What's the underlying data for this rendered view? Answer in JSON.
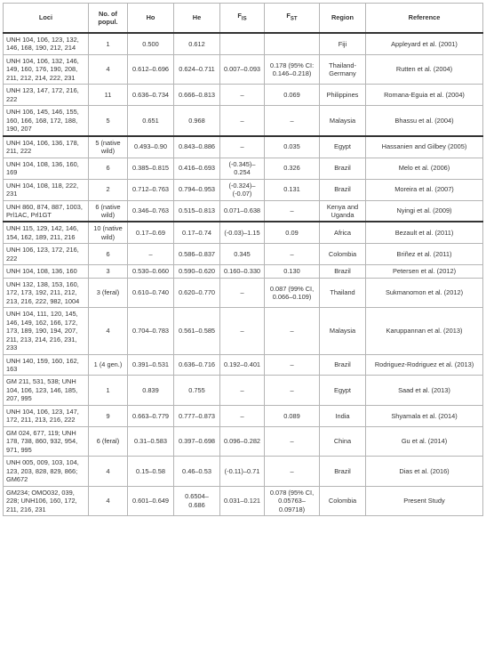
{
  "table": {
    "headers": {
      "loci": "Loci",
      "popul": "No. of popul.",
      "ho": "Ho",
      "he": "He",
      "fis_main": "F",
      "fis_sub": "IS",
      "fst_main": "F",
      "fst_sub": "ST",
      "region": "Region",
      "reference": "Reference"
    },
    "rows": [
      {
        "loci": "UNH 104, 106, 123, 132, 146, 168, 190, 212, 214",
        "popul": "1",
        "ho": "0.500",
        "he": "0.612",
        "fis": "",
        "fst": "",
        "region": "Fiji",
        "reference": "Appleyard et al. (2001)"
      },
      {
        "loci": "UNH 104, 106, 132, 146, 149, 160, 176, 190, 208, 211, 212, 214, 222, 231",
        "popul": "4",
        "ho": "0.612–0.696",
        "he": "0.624–0.711",
        "fis": "0.007–0.093",
        "fst": "0.178 (95% CI: 0.146–0.218)",
        "region": "Thailand-Germany",
        "reference": "Rutten et al. (2004)"
      },
      {
        "loci": "UNH 123, 147, 172, 216, 222",
        "popul": "11",
        "ho": "0.636–0.734",
        "he": "0.666–0.813",
        "fis": "–",
        "fst": "0.069",
        "region": "Philippines",
        "reference": "Romana-Eguia et al. (2004)"
      },
      {
        "loci": "UNH 106, 145, 146, 155, 160, 166, 168, 172, 188, 190, 207",
        "popul": "5",
        "ho": "0.651",
        "he": "0.968",
        "fis": "–",
        "fst": "–",
        "region": "Malaysia",
        "reference": "Bhassu et al. (2004)"
      },
      {
        "loci": "UNH 104, 106, 136, 178, 211, 222",
        "popul": "5 (native wild)",
        "ho": "0.493–0.90",
        "he": "0.843–0.886",
        "fis": "–",
        "fst": "0.035",
        "region": "Egypt",
        "reference": "Hassanien and Gilbey (2005)",
        "group_start": true
      },
      {
        "loci": "UNH 104, 108, 136, 160, 169",
        "popul": "6",
        "ho": "0.385–0.815",
        "he": "0.416–0.693",
        "fis": "(-0.345)–0.254",
        "fst": "0.326",
        "region": "Brazil",
        "reference": "Melo et al. (2006)"
      },
      {
        "loci": "UNH 104, 108, 118, 222, 231",
        "popul": "2",
        "ho": "0.712–0.763",
        "he": "0.794–0.953",
        "fis": "(-0.324)–(-0.07)",
        "fst": "0.131",
        "region": "Brazil",
        "reference": "Moreira et al. (2007)"
      },
      {
        "loci": "UNH 860, 874, 887, 1003, Prl1AC, Prl1GT",
        "popul": "6 (native wild)",
        "ho": "0.346–0.763",
        "he": "0.515–0.813",
        "fis": "0.071–0.638",
        "fst": "–",
        "region": "Kenya and Uganda",
        "reference": "Nyingi et al. (2009)"
      },
      {
        "loci": "UNH 115, 129, 142, 146, 154, 162, 189, 211, 216",
        "popul": "10 (native wild)",
        "ho": "0.17–0.69",
        "he": "0.17–0.74",
        "fis": "(-0.03)–1.15",
        "fst": "0.09",
        "region": "Africa",
        "reference": "Bezault et al. (2011)",
        "group_start": true
      },
      {
        "loci": "UNH 106, 123, 172, 216, 222",
        "popul": "6",
        "ho": "–",
        "he": "0.586–0.837",
        "fis": "0.345",
        "fst": "–",
        "region": "Colombia",
        "reference": "Briñez et al. (2011)"
      },
      {
        "loci": "UNH 104, 108, 136, 160",
        "popul": "3",
        "ho": "0.530–0.660",
        "he": "0.590–0.620",
        "fis": "0.160–0.330",
        "fst": "0.130",
        "region": "Brazil",
        "reference": "Petersen et al. (2012)"
      },
      {
        "loci": "UNH 132, 138, 153, 160, 172, 173, 192, 211, 212, 213, 216, 222, 982, 1004",
        "popul": "3 (feral)",
        "ho": "0.610–0.740",
        "he": "0.620–0.770",
        "fis": "–",
        "fst": "0.087 (99% CI, 0.066–0.109)",
        "region": "Thailand",
        "reference": "Sukmanomon et al. (2012)"
      },
      {
        "loci": "UNH 104, 111, 120, 145, 146, 149, 162, 166, 172, 173, 189, 190, 194, 207, 211, 213, 214, 216, 231, 233",
        "popul": "4",
        "ho": "0.704–0.783",
        "he": "0.561–0.585",
        "fis": "–",
        "fst": "–",
        "region": "Malaysia",
        "reference": "Karuppannan et al. (2013)"
      },
      {
        "loci": "UNH 140, 159, 160, 162, 163",
        "popul": "1 (4 gen.)",
        "ho": "0.391–0.531",
        "he": "0.636–0.716",
        "fis": "0.192–0.401",
        "fst": "–",
        "region": "Brazil",
        "reference": "Rodriguez-Rodriguez et al. (2013)"
      },
      {
        "loci": "GM 211, 531, 538; UNH 104, 106, 123, 146, 185, 207, 995",
        "popul": "1",
        "ho": "0.839",
        "he": "0.755",
        "fis": "–",
        "fst": "–",
        "region": "Egypt",
        "reference": "Saad et al. (2013)"
      },
      {
        "loci": "UNH 104, 106, 123, 147, 172, 211, 213, 216, 222",
        "popul": "9",
        "ho": "0.663–0.779",
        "he": "0.777–0.873",
        "fis": "–",
        "fst": "0.089",
        "region": "India",
        "reference": "Shyamala et al. (2014)"
      },
      {
        "loci": "GM 024, 677, 119; UNH 178, 738, 860, 932, 954, 971, 995",
        "popul": "6 (feral)",
        "ho": "0.31–0.583",
        "he": "0.397–0.698",
        "fis": "0.096–0.282",
        "fst": "–",
        "region": "China",
        "reference": "Gu et al. (2014)"
      },
      {
        "loci": "UNH 005, 009, 103, 104, 123, 203, 828, 829, 866; GM672",
        "popul": "4",
        "ho": "0.15–0.58",
        "he": "0.46–0.53",
        "fis": "(-0.11)–0.71",
        "fst": "–",
        "region": "Brazil",
        "reference": "Dias et al. (2016)"
      },
      {
        "loci": "GM234; OMO032, 039, 228; UNH106, 160, 172, 211, 216, 231",
        "popul": "4",
        "ho": "0.601–0.649",
        "he": "0.6504–0.686",
        "fis": "0.031–0.121",
        "fst": "0.078 (95% CI, 0.05763–0.09718)",
        "region": "Colombia",
        "reference": "Present Study"
      }
    ]
  }
}
